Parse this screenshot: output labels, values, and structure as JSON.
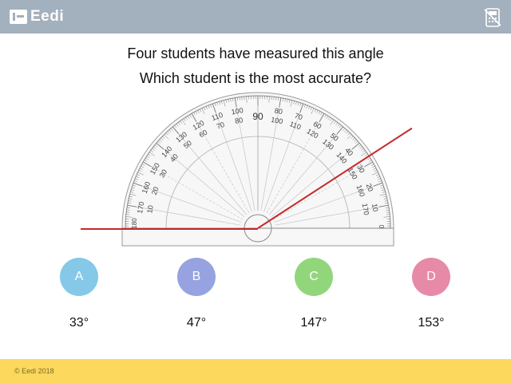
{
  "header": {
    "logo_text": "Eedi",
    "calculator_icon": "calculator-icon",
    "colors": {
      "bar": "#a3b0bd"
    }
  },
  "question": {
    "line1": "Four students have measured this angle",
    "line2": "Which student is the most accurate?"
  },
  "protractor": {
    "top_label": "90",
    "outer_scale": [
      "10",
      "20",
      "30",
      "40",
      "50",
      "60",
      "70",
      "80",
      "100",
      "110",
      "120",
      "130",
      "140",
      "150",
      "160",
      "170"
    ],
    "inner_scale": [
      "170",
      "160",
      "150",
      "140",
      "130",
      "120",
      "110",
      "100",
      "80",
      "70",
      "60",
      "50",
      "40",
      "30",
      "20",
      "10"
    ],
    "edge_label_left": "180",
    "edge_label_right": "0",
    "angle_degrees": 33,
    "line_color": "#c62828"
  },
  "options": [
    {
      "letter": "A",
      "value": "33°",
      "color": "#85c8e8"
    },
    {
      "letter": "B",
      "value": "47°",
      "color": "#96a3e0"
    },
    {
      "letter": "C",
      "value": "147°",
      "color": "#92d67c"
    },
    {
      "letter": "D",
      "value": "153°",
      "color": "#e68aa7"
    }
  ],
  "footer": {
    "copyright": "© Eedi 2018",
    "color": "#fcd95c"
  }
}
